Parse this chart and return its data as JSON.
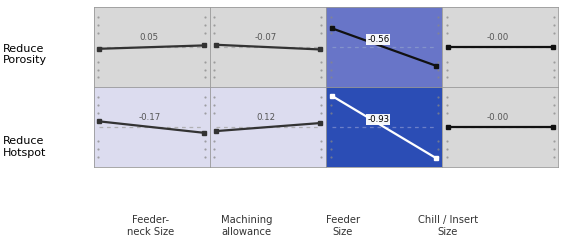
{
  "rows": [
    "Reduce\nPorosity",
    "Reduce\nHotspot"
  ],
  "cols": [
    "Feeder-\nneck Size",
    "Machining\nallowance",
    "Feeder\nSize",
    "Chill / Insert\nSize"
  ],
  "values": [
    [
      0.05,
      -0.07,
      -0.56,
      -0.0
    ],
    [
      -0.17,
      0.12,
      -0.93,
      -0.0
    ]
  ],
  "cell_bg": [
    [
      "#d8d8d8",
      "#d8d8d8",
      "#6875c8",
      "#d8d8d8"
    ],
    [
      "#dcdcef",
      "#dcdcef",
      "#2b4db5",
      "#d8d8d8"
    ]
  ],
  "line_colors": [
    [
      "#333333",
      "#333333",
      "#111111",
      "#111111"
    ],
    [
      "#333333",
      "#333333",
      "#ffffff",
      "#111111"
    ]
  ],
  "dashed_colors": [
    [
      "#aaaaaa",
      "#aaaaaa",
      "#8899cc",
      "#aaaaaa"
    ],
    [
      "#aaaaaa",
      "#aaaaaa",
      "#7788cc",
      "#aaaaaa"
    ]
  ],
  "label_color": [
    [
      "#555555",
      "#555555",
      "#111111",
      "#555555"
    ],
    [
      "#555555",
      "#555555",
      "#111111",
      "#555555"
    ]
  ],
  "label_bg": [
    [
      false,
      false,
      true,
      false
    ],
    [
      false,
      false,
      true,
      false
    ]
  ],
  "border_color": "#999999",
  "dot_color": "#888888"
}
